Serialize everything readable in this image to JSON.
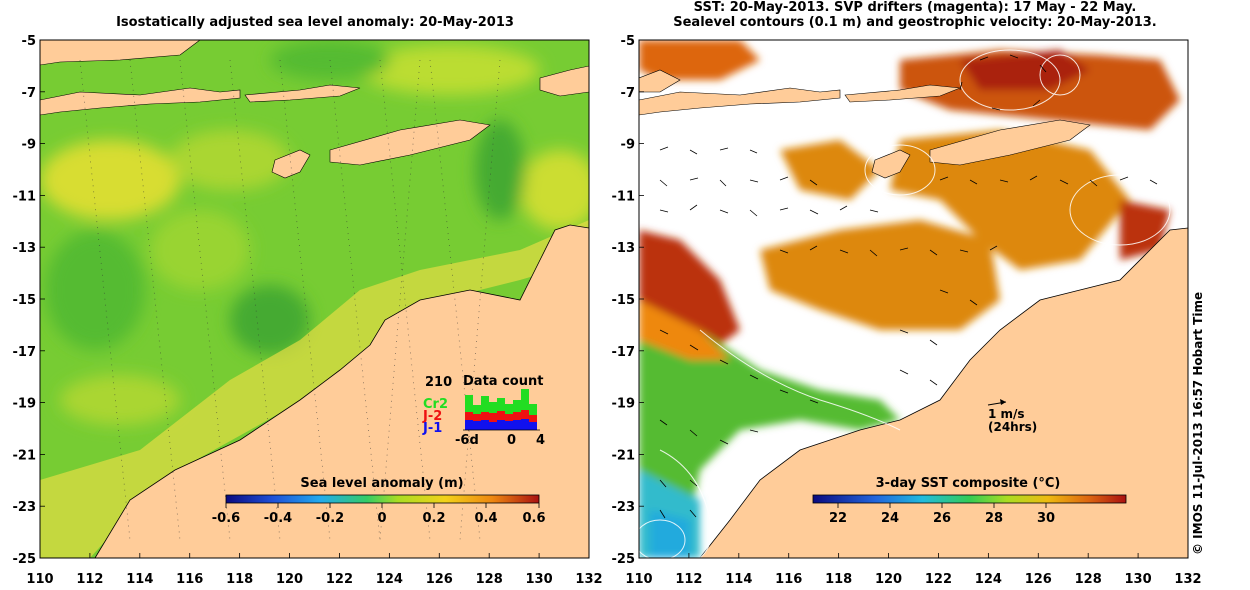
{
  "left_panel": {
    "title": "Isostatically adjusted sea level anomaly: 20-May-2013",
    "colorbar_label": "Sea level anomaly (m)",
    "colorbar_ticks": [
      "-0.6",
      "-0.4",
      "-0.2",
      "0",
      "0.2",
      "0.4",
      "0.6"
    ],
    "data_count": {
      "title": "Data count",
      "max_label": "210",
      "satellites": [
        {
          "name": "Cr2",
          "color": "#22dd22"
        },
        {
          "name": "J-2",
          "color": "#ee1111"
        },
        {
          "name": "J-1",
          "color": "#1111ee"
        }
      ],
      "axis_labels": [
        "-6d",
        "0",
        "4"
      ]
    }
  },
  "right_panel": {
    "title_line1": "SST: 20-May-2013. SVP drifters (magenta): 17 May - 22 May.",
    "title_line2": "Sealevel contours (0.1 m) and geostrophic velocity: 20-May-2013.",
    "colorbar_label": "3-day SST composite (°C)",
    "colorbar_ticks": [
      "22",
      "24",
      "26",
      "28",
      "30"
    ],
    "velocity_scale": {
      "line1": "1 m/s",
      "line2": "(24hrs)"
    }
  },
  "axes": {
    "x_ticks": [
      "110",
      "112",
      "114",
      "116",
      "118",
      "120",
      "122",
      "124",
      "126",
      "128",
      "130",
      "132"
    ],
    "y_ticks": [
      "-5",
      "-7",
      "-9",
      "-11",
      "-13",
      "-15",
      "-17",
      "-19",
      "-21",
      "-23",
      "-25"
    ],
    "lon_range": [
      110,
      132
    ],
    "lat_range": [
      -25,
      -5
    ]
  },
  "credit": "© IMOS 11-Jul-2013 16:57 Hobart Time",
  "colors": {
    "land": "#ffcc99",
    "ocean_green": "#66cc33",
    "sst_orange": "#dd7711"
  }
}
